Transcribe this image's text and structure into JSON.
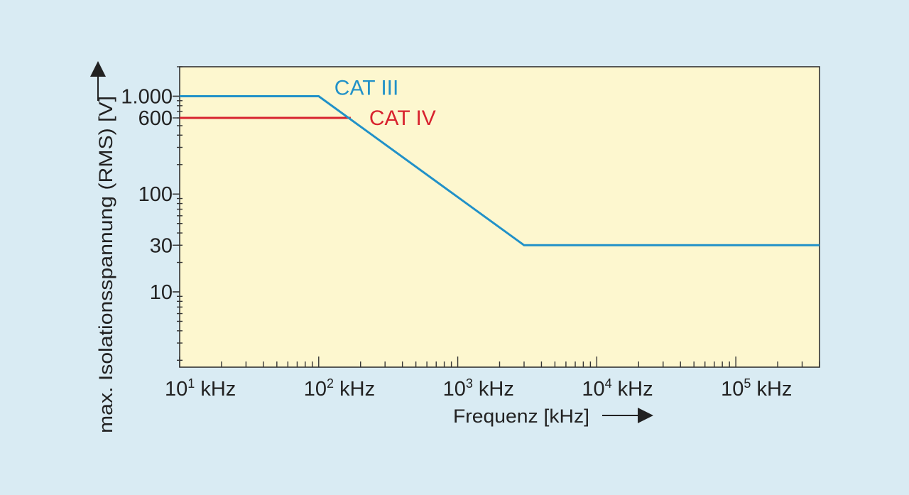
{
  "chart_data": {
    "type": "line",
    "scale": {
      "x": "log",
      "y": "log"
    },
    "xlim": [
      10,
      400000
    ],
    "ylim": [
      1.7,
      2000
    ],
    "xlabel": "Frequenz [kHz]",
    "ylabel": "max. Isolationsspannung (RMS) [V]",
    "x_ticks": [
      {
        "base": "10",
        "exp": "1",
        "unit": " kHz",
        "value": 10
      },
      {
        "base": "10",
        "exp": "2",
        "unit": " kHz",
        "value": 100
      },
      {
        "base": "10",
        "exp": "3",
        "unit": " kHz",
        "value": 1000
      },
      {
        "base": "10",
        "exp": "4",
        "unit": " kHz",
        "value": 10000
      },
      {
        "base": "10",
        "exp": "5",
        "unit": " kHz",
        "value": 100000
      }
    ],
    "y_ticks": [
      {
        "label": "1.000",
        "value": 1000
      },
      {
        "label": "600",
        "value": 600
      },
      {
        "label": "100",
        "value": 100
      },
      {
        "label": "30",
        "value": 30
      },
      {
        "label": "10",
        "value": 10
      }
    ],
    "series": [
      {
        "name": "CAT III",
        "color": "#2191c8",
        "points": [
          [
            10,
            1000
          ],
          [
            100,
            1000
          ],
          [
            3000,
            30
          ],
          [
            400000,
            30
          ]
        ]
      },
      {
        "name": "CAT IV",
        "color": "#d8232f",
        "points": [
          [
            10,
            600
          ],
          [
            170,
            600
          ]
        ]
      }
    ],
    "colors": {
      "background": "#d9ebf3",
      "plot_background": "#fdf7cf",
      "axis": "#333333",
      "text": "#222222"
    }
  }
}
